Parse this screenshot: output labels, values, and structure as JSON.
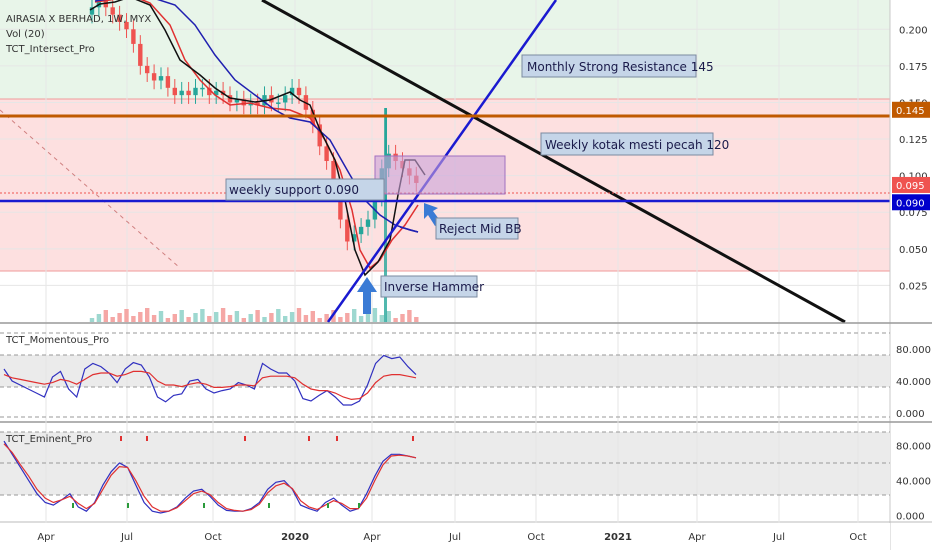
{
  "header": {
    "symbol": "AIRASIA X BERHAD, 1W, MYX",
    "indicators": [
      "Vol (20)",
      "TCT_Intersect_Pro"
    ]
  },
  "panes": {
    "momentum": {
      "title": "TCT_Momentous_Pro"
    },
    "eminent": {
      "title": "TCT_Eminent_Pro"
    }
  },
  "colors": {
    "up_candle": "#26a69a",
    "down_candle": "#ef5350",
    "green_zone": "#e8f5e9",
    "red_zone": "#fde0e0",
    "blue_line": "#0000cc",
    "orange_line": "#c05a00",
    "black_line": "#111111",
    "red_ma": "#e03030",
    "blue_ma": "#2020b0"
  },
  "chart_data": {
    "type": "candlestick",
    "price_axis": {
      "ticks": [
        "0.200",
        "0.175",
        "0.150",
        "0.125",
        "0.100",
        "0.075",
        "0.050",
        "0.025"
      ],
      "ylim": [
        0.0,
        0.22
      ]
    },
    "time_axis": {
      "ticks": [
        "Apr",
        "Jul",
        "Oct",
        "2020",
        "Apr",
        "Jul",
        "Oct",
        "2021",
        "Apr",
        "Jul",
        "Oct"
      ]
    },
    "price_tags": [
      {
        "label": "0.145",
        "value": 0.145,
        "color": "#c05a00"
      },
      {
        "label": "0.095",
        "value": 0.095,
        "color": "#ef5350"
      },
      {
        "label": "0.090",
        "value": 0.09,
        "color": "#0000cc"
      }
    ],
    "horizontal_levels": [
      {
        "name": "Monthly Strong Resistance",
        "value": 0.145
      },
      {
        "name": "weekly support",
        "value": 0.09
      }
    ],
    "annotations": [
      "Monthly Strong Resistance 145",
      "Weekly kotak mesti pecah 120",
      "weekly support 0.090",
      "Reject Mid BB",
      "Inverse Hammer"
    ],
    "close_prices": [
      0.215,
      0.22,
      0.215,
      0.21,
      0.205,
      0.2,
      0.19,
      0.175,
      0.17,
      0.165,
      0.168,
      0.16,
      0.155,
      0.158,
      0.155,
      0.16,
      0.16,
      0.155,
      0.158,
      0.155,
      0.15,
      0.152,
      0.148,
      0.15,
      0.148,
      0.155,
      0.15,
      0.15,
      0.155,
      0.16,
      0.155,
      0.145,
      0.135,
      0.12,
      0.11,
      0.09,
      0.07,
      0.055,
      0.06,
      0.065,
      0.07,
      0.085,
      0.105,
      0.115,
      0.11,
      0.105,
      0.1,
      0.095
    ],
    "momentum": {
      "axis_ticks": [
        "80.000",
        "40.000",
        "0.000"
      ],
      "ylim": [
        -5,
        100
      ],
      "series": [
        {
          "color": "#3030c0",
          "values": [
            55,
            40,
            35,
            30,
            25,
            20,
            45,
            52,
            30,
            20,
            55,
            62,
            58,
            50,
            38,
            55,
            63,
            60,
            45,
            20,
            14,
            22,
            24,
            40,
            42,
            30,
            25,
            28,
            30,
            38,
            35,
            30,
            62,
            55,
            50,
            50,
            40,
            18,
            15,
            22,
            28,
            20,
            10,
            10,
            15,
            35,
            62,
            72,
            68,
            70,
            58,
            48
          ]
        },
        {
          "color": "#e03030",
          "values": [
            48,
            44,
            42,
            40,
            38,
            36,
            38,
            42,
            40,
            36,
            42,
            48,
            50,
            50,
            46,
            48,
            52,
            52,
            50,
            40,
            35,
            35,
            33,
            36,
            38,
            36,
            32,
            32,
            33,
            35,
            35,
            34,
            44,
            46,
            46,
            46,
            44,
            36,
            30,
            28,
            28,
            25,
            20,
            17,
            18,
            25,
            38,
            46,
            48,
            48,
            46,
            44
          ]
        }
      ]
    },
    "eminent": {
      "axis_ticks": [
        "80.000",
        "40.000",
        "0.000"
      ],
      "ylim": [
        -5,
        100
      ],
      "series": [
        {
          "color": "#3030c0",
          "values": [
            85,
            70,
            55,
            40,
            25,
            15,
            12,
            18,
            25,
            10,
            5,
            15,
            35,
            50,
            60,
            55,
            35,
            15,
            5,
            3,
            5,
            10,
            20,
            28,
            30,
            22,
            12,
            6,
            5,
            5,
            8,
            15,
            30,
            38,
            40,
            30,
            12,
            8,
            5,
            15,
            20,
            12,
            5,
            8,
            25,
            45,
            62,
            70,
            70,
            68,
            66
          ]
        },
        {
          "color": "#e03030",
          "values": [
            82,
            72,
            58,
            45,
            30,
            20,
            15,
            18,
            22,
            14,
            8,
            14,
            30,
            46,
            56,
            55,
            40,
            22,
            10,
            5,
            5,
            9,
            17,
            25,
            28,
            24,
            15,
            8,
            6,
            5,
            7,
            13,
            26,
            34,
            37,
            31,
            17,
            10,
            7,
            12,
            17,
            14,
            8,
            8,
            20,
            40,
            58,
            68,
            69,
            68,
            66
          ]
        }
      ]
    }
  }
}
